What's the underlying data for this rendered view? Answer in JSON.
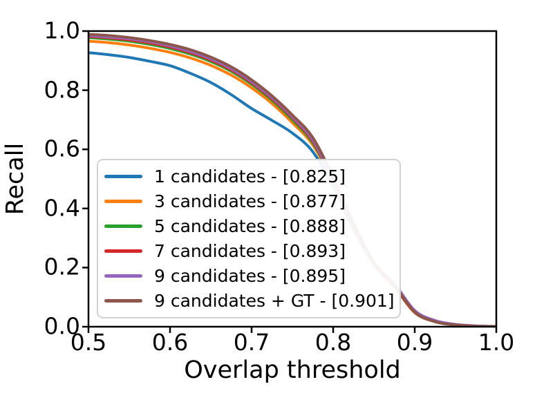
{
  "chart_data": {
    "type": "line",
    "title": "",
    "xlabel": "Overlap threshold",
    "ylabel": "Recall",
    "xlim": [
      0.5,
      1.0
    ],
    "ylim": [
      0.0,
      1.0
    ],
    "grid": false,
    "legend_position": "lower-left-inside",
    "axis_color": "#000000",
    "legend_border_color": "#d2d2d2",
    "x_tick_labels": [
      "0.5",
      "0.6",
      "0.7",
      "0.8",
      "0.9",
      "1.0"
    ],
    "y_tick_labels": [
      "0.0",
      "0.2",
      "0.4",
      "0.6",
      "0.8",
      "1.0"
    ],
    "x_tick_values": [
      0.5,
      0.6,
      0.7,
      0.8,
      0.9,
      1.0
    ],
    "y_tick_values": [
      0.0,
      0.2,
      0.4,
      0.6,
      0.8,
      1.0
    ],
    "x": [
      0.5,
      0.525,
      0.55,
      0.575,
      0.6,
      0.625,
      0.65,
      0.675,
      0.7,
      0.725,
      0.75,
      0.775,
      0.8,
      0.825,
      0.85,
      0.875,
      0.9,
      0.925,
      0.95,
      0.975,
      1.0
    ],
    "series": [
      {
        "name": "1 candidates",
        "legend_label": "1 candidates - [0.825]",
        "auc": 0.825,
        "color": "#1f77b4",
        "y": [
          0.927,
          0.92,
          0.911,
          0.898,
          0.883,
          0.857,
          0.826,
          0.785,
          0.738,
          0.698,
          0.655,
          0.592,
          0.475,
          0.33,
          0.21,
          0.135,
          0.048,
          0.017,
          0.006,
          0.002,
          0.001
        ]
      },
      {
        "name": "3 candidates",
        "legend_label": "3 candidates - [0.877]",
        "auc": 0.877,
        "color": "#ff7f0e",
        "y": [
          0.966,
          0.961,
          0.953,
          0.942,
          0.928,
          0.909,
          0.884,
          0.851,
          0.808,
          0.755,
          0.69,
          0.615,
          0.488,
          0.338,
          0.212,
          0.136,
          0.048,
          0.017,
          0.006,
          0.002,
          0.001
        ]
      },
      {
        "name": "5 candidates",
        "legend_label": "5 candidates - [0.888]",
        "auc": 0.888,
        "color": "#2ca02c",
        "y": [
          0.978,
          0.973,
          0.966,
          0.955,
          0.941,
          0.922,
          0.897,
          0.864,
          0.82,
          0.766,
          0.7,
          0.622,
          0.492,
          0.341,
          0.213,
          0.137,
          0.049,
          0.017,
          0.006,
          0.002,
          0.001
        ]
      },
      {
        "name": "7 candidates",
        "legend_label": "7 candidates - [0.893]",
        "auc": 0.893,
        "color": "#d62728",
        "y": [
          0.982,
          0.977,
          0.97,
          0.96,
          0.946,
          0.927,
          0.902,
          0.869,
          0.825,
          0.771,
          0.706,
          0.627,
          0.495,
          0.344,
          0.214,
          0.138,
          0.049,
          0.017,
          0.006,
          0.002,
          0.001
        ]
      },
      {
        "name": "9 candidates",
        "legend_label": "9 candidates - [0.895]",
        "auc": 0.895,
        "color": "#9467bd",
        "y": [
          0.985,
          0.98,
          0.974,
          0.964,
          0.95,
          0.931,
          0.906,
          0.873,
          0.829,
          0.775,
          0.71,
          0.632,
          0.498,
          0.347,
          0.216,
          0.146,
          0.055,
          0.021,
          0.008,
          0.003,
          0.001
        ]
      },
      {
        "name": "9 candidates + GT",
        "legend_label": "9 candidates + GT - [0.901]",
        "auc": 0.901,
        "color": "#8c564b",
        "y": [
          0.989,
          0.985,
          0.978,
          0.968,
          0.955,
          0.937,
          0.912,
          0.879,
          0.835,
          0.781,
          0.716,
          0.64,
          0.505,
          0.35,
          0.218,
          0.14,
          0.05,
          0.017,
          0.006,
          0.002,
          0.001
        ]
      }
    ]
  }
}
